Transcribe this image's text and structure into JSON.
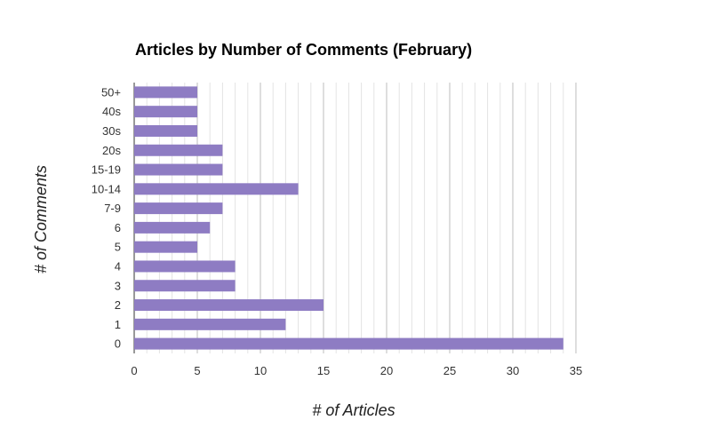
{
  "chart_data": {
    "type": "bar",
    "orientation": "horizontal",
    "title": "Articles by Number of Comments (February)",
    "xlabel": "# of Articles",
    "ylabel": "# of Comments",
    "categories": [
      "50+",
      "40s",
      "30s",
      "20s",
      "15-19",
      "10-14",
      "7-9",
      "6",
      "5",
      "4",
      "3",
      "2",
      "1",
      "0"
    ],
    "values": [
      5,
      5,
      5,
      7,
      7,
      13,
      7,
      6,
      5,
      8,
      8,
      15,
      12,
      34
    ],
    "xlim": [
      0,
      35
    ],
    "xticks": [
      "0",
      "5",
      "10",
      "15",
      "20",
      "25",
      "30",
      "35"
    ],
    "grid": true,
    "bar_color": "#8e7cc3"
  }
}
